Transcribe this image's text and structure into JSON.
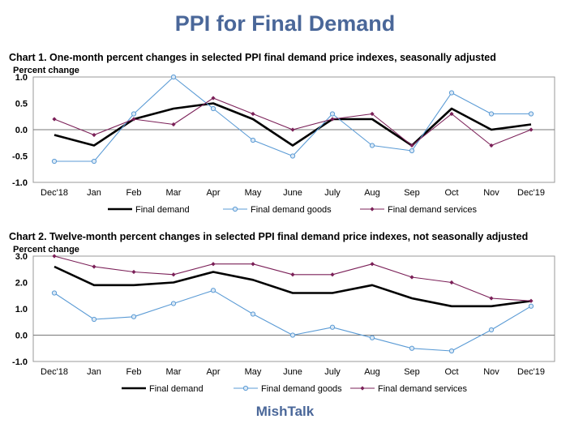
{
  "page": {
    "title": "PPI for Final Demand",
    "footer": "MishTalk"
  },
  "colors": {
    "final_demand": "#000000",
    "final_demand_goods": "#5b9bd5",
    "final_demand_services": "#7b2058",
    "title_blue": "#4a6799"
  },
  "chart_data": [
    {
      "type": "line",
      "title": "Chart 1. One-month percent changes in selected PPI final demand price indexes, seasonally adjusted",
      "ylabel": "Percent change",
      "xlabel": "",
      "ylim": [
        -1.0,
        1.0
      ],
      "yticks": [
        "1.0",
        "0.5",
        "0.0",
        "-0.5",
        "-1.0"
      ],
      "grid": false,
      "legend": "bottom",
      "categories": [
        "Dec'18",
        "Jan",
        "Feb",
        "Mar",
        "Apr",
        "May",
        "June",
        "July",
        "Aug",
        "Sep",
        "Oct",
        "Nov",
        "Dec'19"
      ],
      "series": [
        {
          "name": "Final demand",
          "values": [
            -0.1,
            -0.3,
            0.2,
            0.4,
            0.5,
            0.2,
            -0.3,
            0.2,
            0.2,
            -0.3,
            0.4,
            0.0,
            0.1
          ]
        },
        {
          "name": "Final demand goods",
          "values": [
            -0.6,
            -0.6,
            0.3,
            1.0,
            0.4,
            -0.2,
            -0.5,
            0.3,
            -0.3,
            -0.4,
            0.7,
            0.3,
            0.3
          ]
        },
        {
          "name": "Final demand services",
          "values": [
            0.2,
            -0.1,
            0.2,
            0.1,
            0.6,
            0.3,
            0.0,
            0.2,
            0.3,
            -0.3,
            0.3,
            -0.3,
            0.0
          ]
        }
      ]
    },
    {
      "type": "line",
      "title": "Chart 2. Twelve-month percent changes in selected PPI final demand price indexes, not seasonally adjusted",
      "ylabel": "Percent change",
      "xlabel": "",
      "ylim": [
        -1.0,
        3.0
      ],
      "yticks": [
        "3.0",
        "2.0",
        "1.0",
        "0.0",
        "-1.0"
      ],
      "grid": false,
      "legend": "bottom",
      "categories": [
        "Dec'18",
        "Jan",
        "Feb",
        "Mar",
        "Apr",
        "May",
        "June",
        "July",
        "Aug",
        "Sep",
        "Oct",
        "Nov",
        "Dec'19"
      ],
      "series": [
        {
          "name": "Final demand",
          "values": [
            2.6,
            1.9,
            1.9,
            2.0,
            2.4,
            2.1,
            1.6,
            1.6,
            1.9,
            1.4,
            1.1,
            1.1,
            1.3
          ]
        },
        {
          "name": "Final demand goods",
          "values": [
            1.6,
            0.6,
            0.7,
            1.2,
            1.7,
            0.8,
            0.0,
            0.3,
            -0.1,
            -0.5,
            -0.6,
            0.2,
            1.1
          ]
        },
        {
          "name": "Final demand services",
          "values": [
            3.0,
            2.6,
            2.4,
            2.3,
            2.7,
            2.7,
            2.3,
            2.3,
            2.7,
            2.2,
            2.0,
            1.4,
            1.3
          ]
        }
      ]
    }
  ]
}
